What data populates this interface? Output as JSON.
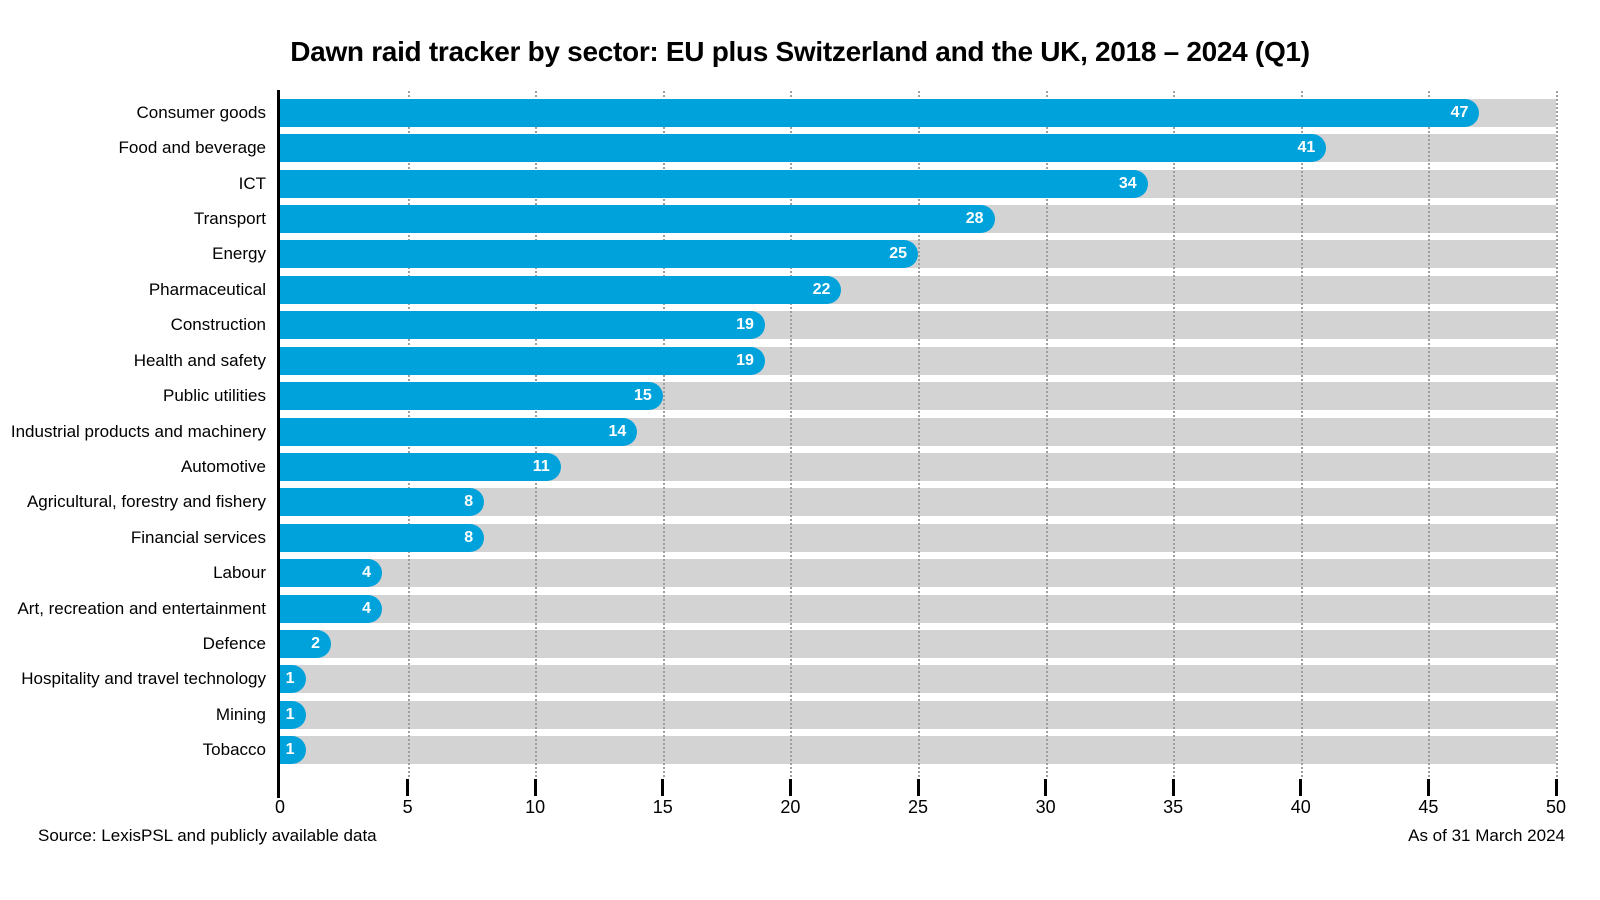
{
  "title": "Dawn raid tracker by sector: EU plus Switzerland and the UK, 2018 – 2024 (Q1)",
  "footer": {
    "source": "Source: LexisPSL and publicly available data",
    "as_of": "As of 31 March 2024"
  },
  "chart_data": {
    "type": "bar",
    "orientation": "horizontal",
    "title": "Dawn raid tracker by sector: EU plus Switzerland and the UK, 2018 – 2024 (Q1)",
    "categories": [
      "Consumer goods",
      "Food and beverage",
      "ICT",
      "Transport",
      "Energy",
      "Pharmaceutical",
      "Construction",
      "Health and safety",
      "Public utilities",
      "Industrial products and machinery",
      "Automotive",
      "Agricultural, forestry and fishery",
      "Financial services",
      "Labour",
      "Art, recreation and entertainment",
      "Defence",
      "Hospitality and travel technology",
      "Mining",
      "Tobacco"
    ],
    "values": [
      47,
      41,
      34,
      28,
      25,
      22,
      19,
      19,
      15,
      14,
      11,
      8,
      8,
      4,
      4,
      2,
      1,
      1,
      1
    ],
    "xlabel": "",
    "ylabel": "",
    "xlim": [
      0,
      50
    ],
    "xticks": [
      0,
      5,
      10,
      15,
      20,
      25,
      30,
      35,
      40,
      45,
      50
    ],
    "grid": "dotted-vertical",
    "legend": "none",
    "bar_color": "#00a2dc",
    "track_color": "#d3d3d3",
    "value_label_color": "#ffffff",
    "axis_color": "#000000"
  }
}
